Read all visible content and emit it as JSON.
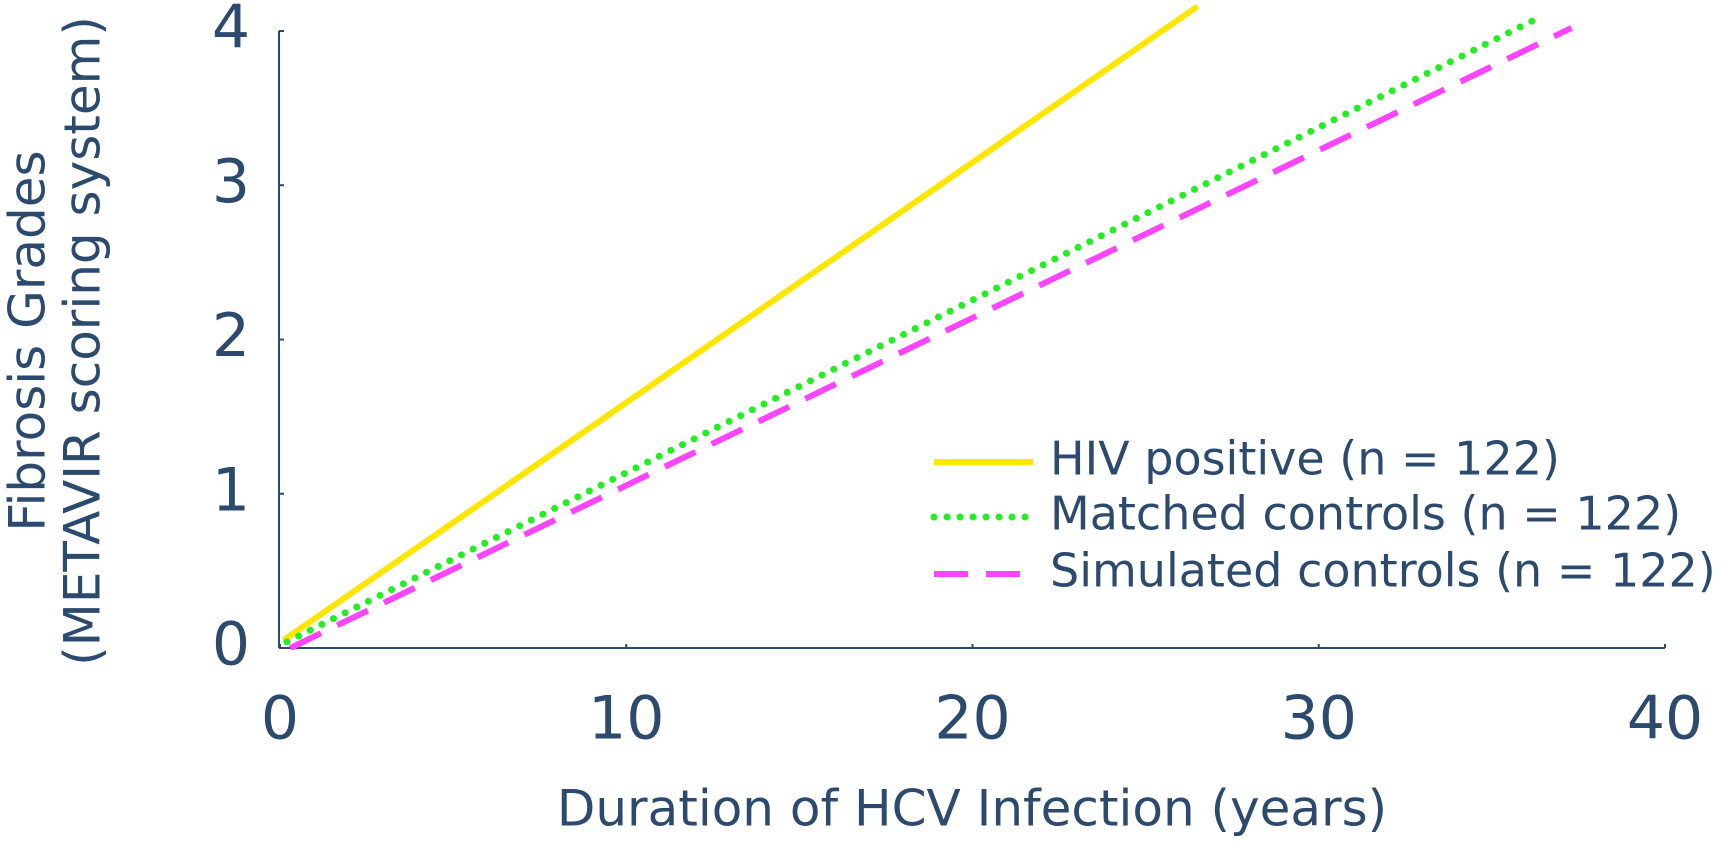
{
  "chart_data": {
    "type": "line",
    "x_label": "Duration of HCV Infection (years)",
    "y_label": [
      "Fibrosis Grades",
      "(METAVIR scoring system)"
    ],
    "xlim": [
      0,
      40
    ],
    "ylim": [
      0,
      4
    ],
    "xticks": [
      0,
      10,
      20,
      30,
      40
    ],
    "yticks": [
      0,
      1,
      2,
      3,
      4
    ],
    "legend": "lower right",
    "series": [
      {
        "name": "HIV positive (n = 122)",
        "color": "#ffe600",
        "dash": "solid",
        "x": [
          0.1,
          26.5
        ],
        "y": [
          0.05,
          4.16
        ]
      },
      {
        "name": "Matched controls (n = 122)",
        "color": "#22ee22",
        "dash": "dotted",
        "x": [
          0.2,
          36.3
        ],
        "y": [
          0.04,
          4.08
        ]
      },
      {
        "name": "Simulated controls (n = 122)",
        "color": "#ff44ff",
        "dash": "dashed",
        "x": [
          0.3,
          37.3
        ],
        "y": [
          0,
          4.02
        ]
      }
    ]
  }
}
